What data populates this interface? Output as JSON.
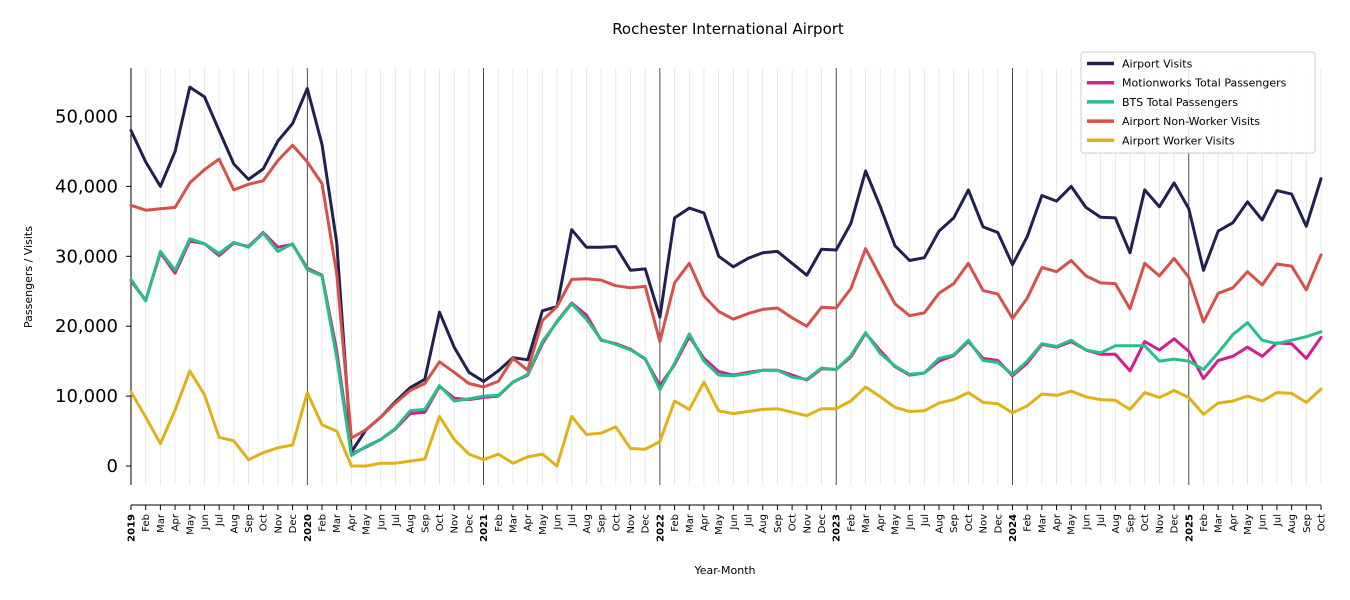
{
  "chart_data": {
    "type": "line",
    "title": "Rochester International Airport",
    "xlabel": "Year-Month",
    "ylabel": "Passengers / Visits",
    "ylim": [
      -3000,
      57000
    ],
    "yticks": [
      0,
      10000,
      20000,
      30000,
      40000,
      50000
    ],
    "ytick_labels": [
      "0",
      "10,000",
      "20,000",
      "30,000",
      "40,000",
      "50,000"
    ],
    "grid": "vertical minor lines each month; darker line at each January",
    "legend_position": "top-right",
    "x": [
      "2019",
      "Feb",
      "Mar",
      "Apr",
      "May",
      "Jun",
      "Jul",
      "Aug",
      "Sep",
      "Oct",
      "Nov",
      "Dec",
      "2020",
      "Feb",
      "Mar",
      "Apr",
      "May",
      "Jun",
      "Jul",
      "Aug",
      "Sep",
      "Oct",
      "Nov",
      "Dec",
      "2021",
      "Feb",
      "Mar",
      "Apr",
      "May",
      "Jun",
      "Jul",
      "Aug",
      "Sep",
      "Oct",
      "Nov",
      "Dec",
      "2022",
      "Feb",
      "Mar",
      "Apr",
      "May",
      "Jun",
      "Jul",
      "Aug",
      "Sep",
      "Oct",
      "Nov",
      "Dec",
      "2023",
      "Feb",
      "Mar",
      "Apr",
      "May",
      "Jun",
      "Jul",
      "Aug",
      "Sep",
      "Oct",
      "Nov",
      "Dec",
      "2024",
      "Feb",
      "Mar",
      "Apr",
      "May",
      "Jun",
      "Jul",
      "Aug",
      "Sep",
      "Oct",
      "Nov",
      "Dec",
      "2025",
      "Feb",
      "Mar",
      "Apr",
      "May",
      "Jun",
      "Jul",
      "Aug",
      "Sep",
      "Oct"
    ],
    "series": [
      {
        "name": "Airport Visits",
        "color": "#21214f",
        "values": [
          48000,
          43500,
          40000,
          45000,
          54200,
          52800,
          48000,
          43200,
          41000,
          42500,
          46500,
          49000,
          54000,
          46000,
          32000,
          2000,
          5200,
          7000,
          9200,
          11200,
          12400,
          22000,
          17000,
          13400,
          12100,
          13600,
          15500,
          15200,
          22200,
          22800,
          33800,
          31300,
          31300,
          31400,
          28000,
          28200,
          21300,
          35500,
          36900,
          36200,
          30000,
          28500,
          29700,
          30500,
          30700,
          29000,
          27300,
          31000,
          30900,
          34700,
          42200,
          37100,
          31500,
          29400,
          29800,
          33600,
          35500,
          39500,
          34200,
          33400,
          28800,
          32800,
          38700,
          37900,
          40000,
          37000,
          35600,
          35500,
          30500,
          39500,
          37100,
          40500,
          36800,
          28000,
          33600,
          34800,
          37800,
          35200,
          39400,
          38900,
          34300,
          41100
        ]
      },
      {
        "name": "Motionworks Total Passengers",
        "color": "#d21f8c",
        "values": [
          26500,
          23700,
          30500,
          27600,
          32200,
          31800,
          30100,
          31900,
          31400,
          33400,
          31300,
          31700,
          28300,
          27300,
          16500,
          1700,
          2700,
          3800,
          5300,
          7500,
          7700,
          11400,
          9700,
          9500,
          9800,
          10000,
          12000,
          13000,
          17500,
          20700,
          23300,
          21600,
          18000,
          17500,
          16700,
          15300,
          11500,
          14500,
          18500,
          15400,
          13500,
          13000,
          13400,
          13700,
          13700,
          13000,
          12300,
          13900,
          13800,
          15600,
          19000,
          16500,
          14200,
          13000,
          13300,
          15000,
          15800,
          17800,
          15400,
          15100,
          12900,
          14700,
          17400,
          17000,
          17800,
          16600,
          16000,
          16000,
          13600,
          17800,
          16600,
          18200,
          16400,
          12500,
          15100,
          15700,
          17000,
          15700,
          17600,
          17500,
          15400,
          18400
        ]
      },
      {
        "name": "BTS Total Passengers",
        "color": "#26bf8a",
        "values": [
          26700,
          23600,
          30700,
          28000,
          32500,
          31800,
          30400,
          32000,
          31300,
          33300,
          30700,
          31800,
          28100,
          27200,
          15500,
          1500,
          2800,
          3800,
          5400,
          7900,
          8100,
          11500,
          9300,
          9600,
          10000,
          10100,
          12000,
          13100,
          17800,
          20600,
          23200,
          21000,
          18100,
          17400,
          16600,
          15400,
          10900,
          14700,
          18900,
          15000,
          13000,
          12900,
          13200,
          13700,
          13700,
          12700,
          12400,
          14000,
          13800,
          15800,
          19100,
          16100,
          14300,
          13100,
          13300,
          15400,
          15900,
          18000,
          15100,
          14800,
          13100,
          15000,
          17500,
          17100,
          18000,
          16600,
          16200,
          17200,
          17200,
          17200,
          15000,
          15300,
          15000,
          13800,
          16200,
          18800,
          20500,
          18000,
          17500,
          18000,
          18500,
          19200
        ]
      },
      {
        "name": "Airport Non-Worker Visits",
        "color": "#d5514c",
        "values": [
          37300,
          36600,
          36800,
          37000,
          40500,
          42400,
          43900,
          39500,
          40300,
          40800,
          43700,
          45900,
          43500,
          40400,
          27500,
          4000,
          5200,
          7000,
          9000,
          10800,
          11800,
          14900,
          13400,
          11800,
          11300,
          12100,
          15400,
          13700,
          20800,
          22800,
          26700,
          26800,
          26600,
          25800,
          25500,
          25700,
          17800,
          26200,
          29000,
          24300,
          22100,
          21000,
          21800,
          22400,
          22600,
          21200,
          20000,
          22700,
          22600,
          25400,
          31100,
          27100,
          23200,
          21500,
          21900,
          24700,
          26100,
          29000,
          25100,
          24600,
          21100,
          24000,
          28400,
          27800,
          29400,
          27200,
          26200,
          26100,
          22500,
          29000,
          27200,
          29700,
          27000,
          20600,
          24700,
          25500,
          27800,
          25900,
          28900,
          28600,
          25200,
          30200
        ]
      },
      {
        "name": "Airport Worker Visits",
        "color": "#e0b217",
        "values": [
          10600,
          7000,
          3200,
          8000,
          13600,
          10200,
          4100,
          3600,
          900,
          1900,
          2600,
          3000,
          10500,
          5900,
          5000,
          0,
          0,
          400,
          400,
          700,
          1000,
          7100,
          3800,
          1700,
          900,
          1700,
          400,
          1300,
          1700,
          0,
          7100,
          4500,
          4700,
          5600,
          2500,
          2400,
          3500,
          9300,
          8100,
          12000,
          7900,
          7500,
          7800,
          8100,
          8200,
          7700,
          7200,
          8200,
          8200,
          9300,
          11300,
          9900,
          8400,
          7800,
          7900,
          9000,
          9500,
          10500,
          9100,
          8900,
          7600,
          8600,
          10300,
          10100,
          10700,
          9900,
          9500,
          9400,
          8100,
          10500,
          9800,
          10800,
          9800,
          7400,
          9000,
          9300,
          10000,
          9300,
          10500,
          10400,
          9100,
          11000
        ]
      }
    ]
  }
}
